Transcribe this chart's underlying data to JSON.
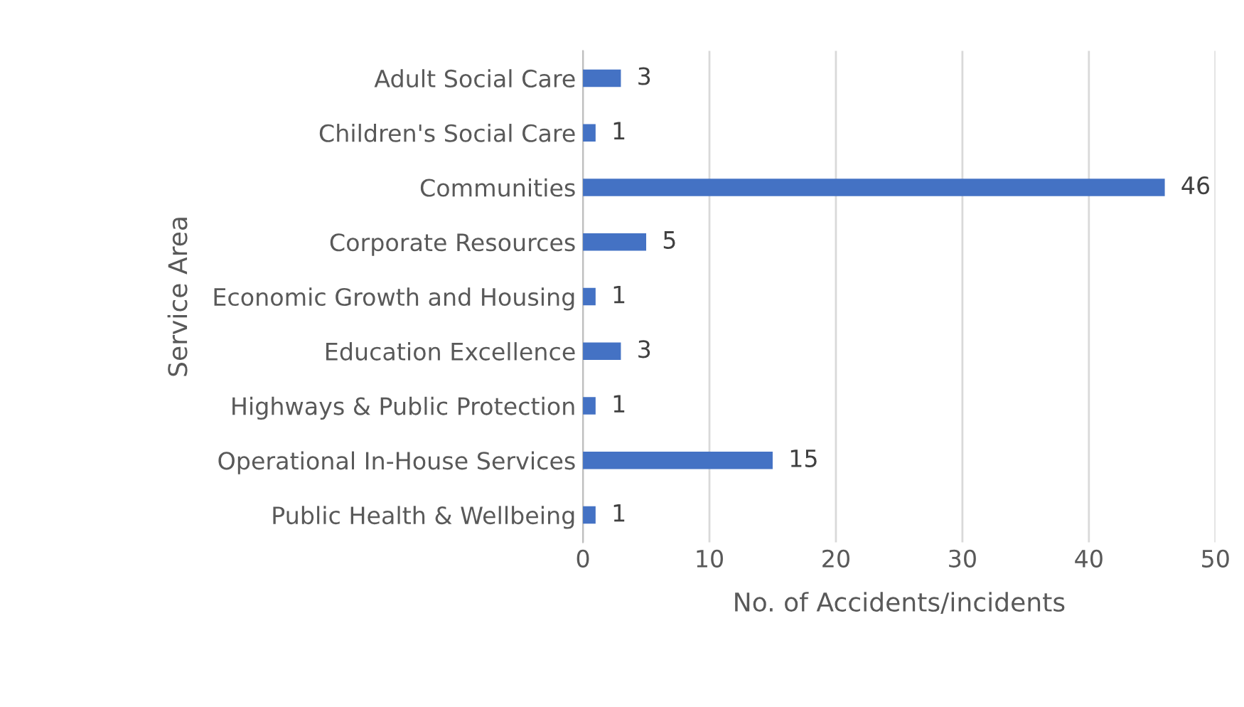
{
  "chart_data": {
    "type": "bar",
    "orientation": "horizontal",
    "ylabel": "Service Area",
    "xlabel": "No. of Accidents/incidents",
    "categories": [
      "Adult Social Care",
      "Children's Social Care",
      "Communities",
      "Corporate Resources",
      "Economic Growth and Housing",
      "Education Excellence",
      "Highways & Public Protection",
      "Operational In-House Services",
      "Public Health & Wellbeing"
    ],
    "values": [
      3,
      1,
      46,
      5,
      1,
      3,
      1,
      15,
      1
    ],
    "color": "#4472c4",
    "xlim": [
      0,
      50
    ],
    "xticks": [
      0,
      10,
      20,
      30,
      40,
      50
    ],
    "grid": "x",
    "data_labels": true
  }
}
